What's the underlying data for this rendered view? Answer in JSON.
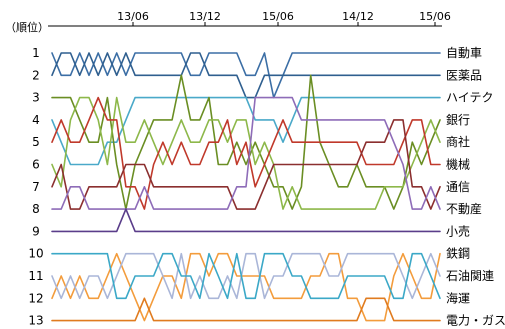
{
  "chart_data": {
    "type": "line",
    "title": "",
    "ylabel": "（順位）",
    "xlabel": "",
    "x_tick_labels": [
      "13/06",
      "13/12",
      "15/06",
      "14/12",
      "15/06"
    ],
    "y_range": [
      1,
      13
    ],
    "y_inverted": true,
    "y_ticks": [
      1,
      2,
      3,
      4,
      5,
      6,
      7,
      8,
      9,
      10,
      11,
      12,
      13
    ],
    "n_points": 43,
    "grid": false,
    "legend": "labels at right end of each line",
    "series": [
      {
        "name": "自動車",
        "color": "#3b6ea5",
        "values": [
          1,
          2,
          2,
          1,
          2,
          1,
          2,
          1,
          2,
          1,
          1,
          1,
          1,
          1,
          1,
          2,
          2,
          1,
          1,
          1,
          1,
          2,
          2,
          1,
          3,
          2,
          1,
          1,
          1,
          1,
          1,
          1,
          1,
          1,
          1,
          1,
          1,
          1,
          1,
          1,
          1,
          1,
          1
        ]
      },
      {
        "name": "医薬品",
        "color": "#2f5f8f",
        "values": [
          2,
          1,
          1,
          2,
          1,
          2,
          1,
          2,
          1,
          2,
          2,
          2,
          2,
          2,
          2,
          1,
          1,
          2,
          2,
          2,
          2,
          3,
          3,
          2,
          2,
          2,
          2,
          2,
          2,
          2,
          2,
          2,
          2,
          2,
          2,
          2,
          2,
          2,
          2,
          2,
          2,
          2,
          2
        ]
      },
      {
        "name": "ハイテク",
        "color": "#4aa9c9",
        "values": [
          4,
          5,
          6,
          6,
          6,
          6,
          5,
          5,
          4,
          3,
          3,
          3,
          3,
          3,
          3,
          3,
          3,
          3,
          3,
          3,
          3,
          3,
          4,
          4,
          4,
          5,
          4,
          3,
          3,
          3,
          3,
          3,
          3,
          3,
          3,
          3,
          3,
          3,
          3,
          3,
          3,
          3,
          3
        ]
      },
      {
        "name": "銀行",
        "color": "#6a8e23",
        "values": [
          3,
          3,
          3,
          4,
          5,
          5,
          3,
          6,
          8,
          6,
          5,
          4,
          4,
          4,
          2,
          4,
          4,
          3,
          6,
          6,
          5,
          6,
          5,
          6,
          7,
          7,
          8,
          7,
          2,
          5,
          6,
          7,
          7,
          6,
          7,
          7,
          7,
          8,
          7,
          5,
          6,
          5,
          4
        ]
      },
      {
        "name": "商社",
        "color": "#8db84a",
        "values": [
          6,
          7,
          4,
          3,
          3,
          4,
          6,
          3,
          5,
          5,
          4,
          5,
          6,
          5,
          4,
          5,
          5,
          4,
          4,
          5,
          4,
          4,
          6,
          5,
          6,
          8,
          7,
          8,
          8,
          8,
          8,
          8,
          8,
          8,
          8,
          8,
          7,
          7,
          7,
          6,
          5,
          4,
          5
        ]
      },
      {
        "name": "機械",
        "color": "#c0392b",
        "values": [
          5,
          4,
          5,
          5,
          4,
          3,
          4,
          4,
          7,
          7,
          8,
          6,
          5,
          6,
          5,
          6,
          6,
          5,
          5,
          4,
          6,
          5,
          7,
          6,
          5,
          4,
          5,
          5,
          5,
          5,
          5,
          5,
          5,
          5,
          6,
          6,
          6,
          6,
          5,
          4,
          4,
          6,
          6
        ]
      },
      {
        "name": "通信",
        "color": "#8b2f2f",
        "values": [
          7,
          6,
          8,
          8,
          7,
          7,
          7,
          7,
          6,
          6,
          6,
          7,
          7,
          7,
          7,
          7,
          7,
          7,
          7,
          7,
          8,
          8,
          8,
          7,
          6,
          6,
          6,
          6,
          6,
          6,
          6,
          6,
          6,
          6,
          5,
          5,
          5,
          4,
          4,
          7,
          7,
          8,
          7
        ]
      },
      {
        "name": "不動産",
        "color": "#8e6cb8",
        "values": [
          8,
          8,
          7,
          7,
          8,
          8,
          8,
          8,
          8,
          8,
          7,
          8,
          8,
          8,
          8,
          8,
          8,
          8,
          8,
          8,
          7,
          7,
          3,
          3,
          3,
          3,
          3,
          4,
          4,
          4,
          4,
          4,
          4,
          4,
          4,
          4,
          4,
          5,
          6,
          8,
          8,
          7,
          8
        ]
      },
      {
        "name": "小売",
        "color": "#5a3d8a",
        "values": [
          9,
          9,
          9,
          9,
          9,
          9,
          9,
          9,
          8,
          9,
          9,
          9,
          9,
          9,
          9,
          9,
          9,
          9,
          9,
          9,
          9,
          9,
          9,
          9,
          9,
          9,
          9,
          9,
          9,
          9,
          9,
          9,
          9,
          9,
          9,
          9,
          9,
          9,
          9,
          9,
          9,
          9,
          9
        ]
      },
      {
        "name": "鉄鋼",
        "color": "#f39c3c",
        "values": [
          12,
          11,
          12,
          11,
          12,
          12,
          11,
          10,
          11,
          12,
          13,
          12,
          11,
          11,
          12,
          10,
          10,
          11,
          10,
          10,
          11,
          11,
          11,
          11,
          12,
          12,
          12,
          12,
          11,
          11,
          10,
          10,
          12,
          12,
          13,
          13,
          13,
          11,
          10,
          11,
          12,
          12,
          10
        ]
      },
      {
        "name": "石油関連",
        "color": "#aab6d8",
        "values": [
          11,
          12,
          11,
          12,
          11,
          11,
          12,
          11,
          10,
          10,
          10,
          10,
          11,
          12,
          10,
          12,
          11,
          12,
          12,
          11,
          12,
          10,
          10,
          12,
          11,
          11,
          10,
          10,
          10,
          10,
          11,
          11,
          10,
          10,
          10,
          10,
          10,
          10,
          11,
          12,
          11,
          10,
          11
        ]
      },
      {
        "name": "海運",
        "color": "#3ba8c7",
        "values": [
          10,
          10,
          10,
          10,
          10,
          10,
          10,
          12,
          12,
          11,
          11,
          11,
          10,
          10,
          11,
          11,
          12,
          10,
          11,
          12,
          10,
          12,
          12,
          10,
          10,
          10,
          11,
          11,
          12,
          12,
          12,
          12,
          11,
          11,
          11,
          11,
          11,
          12,
          12,
          10,
          10,
          11,
          12
        ]
      },
      {
        "name": "電力・ガス",
        "color": "#e07b1f",
        "values": [
          13,
          13,
          13,
          13,
          13,
          13,
          13,
          13,
          13,
          13,
          12,
          13,
          13,
          13,
          13,
          13,
          13,
          13,
          13,
          13,
          13,
          13,
          13,
          13,
          13,
          13,
          13,
          13,
          13,
          13,
          13,
          13,
          13,
          13,
          12,
          12,
          12,
          13,
          13,
          13,
          13,
          13,
          13
        ]
      }
    ]
  }
}
